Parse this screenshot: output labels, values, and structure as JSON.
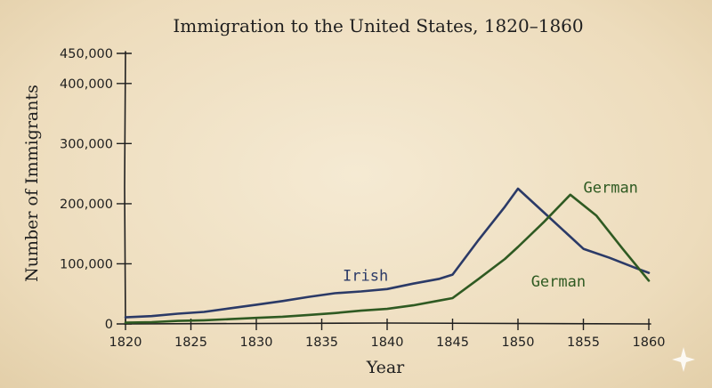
{
  "chart_data": {
    "type": "line",
    "title": "Immigration to the United States, 1820–1860",
    "xlabel": "Year",
    "ylabel": "Number of Immigrants",
    "xlim": [
      1820,
      1860
    ],
    "ylim": [
      0,
      450000
    ],
    "x_ticks": [
      1820,
      1825,
      1830,
      1835,
      1840,
      1845,
      1850,
      1855,
      1860
    ],
    "y_ticks": [
      0,
      100000,
      200000,
      300000,
      400000,
      450000
    ],
    "y_tick_labels": [
      "0",
      "100,000",
      "200,000",
      "300,000",
      "400,000",
      "450,000"
    ],
    "grid": false,
    "series": [
      {
        "name": "Irish",
        "color": "#2b3a67",
        "points": [
          [
            1820,
            11000
          ],
          [
            1822,
            13000
          ],
          [
            1824,
            17000
          ],
          [
            1826,
            20000
          ],
          [
            1828,
            26000
          ],
          [
            1830,
            32000
          ],
          [
            1832,
            38000
          ],
          [
            1834,
            45000
          ],
          [
            1836,
            51000
          ],
          [
            1838,
            54000
          ],
          [
            1840,
            58000
          ],
          [
            1842,
            67000
          ],
          [
            1844,
            75000
          ],
          [
            1845,
            82000
          ],
          [
            1847,
            140000
          ],
          [
            1849,
            195000
          ],
          [
            1850,
            225000
          ],
          [
            1852,
            185000
          ],
          [
            1854,
            145000
          ],
          [
            1855,
            125000
          ],
          [
            1857,
            110000
          ],
          [
            1859,
            93000
          ],
          [
            1860,
            85000
          ]
        ]
      },
      {
        "name": "German",
        "color": "#2f5a22",
        "points": [
          [
            1820,
            2000
          ],
          [
            1822,
            3000
          ],
          [
            1824,
            5000
          ],
          [
            1826,
            6000
          ],
          [
            1828,
            8000
          ],
          [
            1830,
            10000
          ],
          [
            1832,
            12000
          ],
          [
            1834,
            15000
          ],
          [
            1836,
            18000
          ],
          [
            1838,
            22000
          ],
          [
            1840,
            25000
          ],
          [
            1842,
            31000
          ],
          [
            1844,
            39000
          ],
          [
            1845,
            43000
          ],
          [
            1847,
            75000
          ],
          [
            1849,
            108000
          ],
          [
            1850,
            128000
          ],
          [
            1852,
            170000
          ],
          [
            1854,
            215000
          ],
          [
            1856,
            180000
          ],
          [
            1858,
            125000
          ],
          [
            1860,
            72000
          ]
        ]
      }
    ],
    "annotations": [
      {
        "text": "Irish",
        "series": "Irish",
        "x": 1836.6,
        "y": 72000,
        "color": "#2b3a67"
      },
      {
        "text": "German",
        "series": "German",
        "x": 1855.0,
        "y": 218000,
        "color": "#2f5a22"
      },
      {
        "text": "German",
        "series": "German",
        "x": 1851.0,
        "y": 62000,
        "color": "#2f5a22"
      }
    ]
  }
}
